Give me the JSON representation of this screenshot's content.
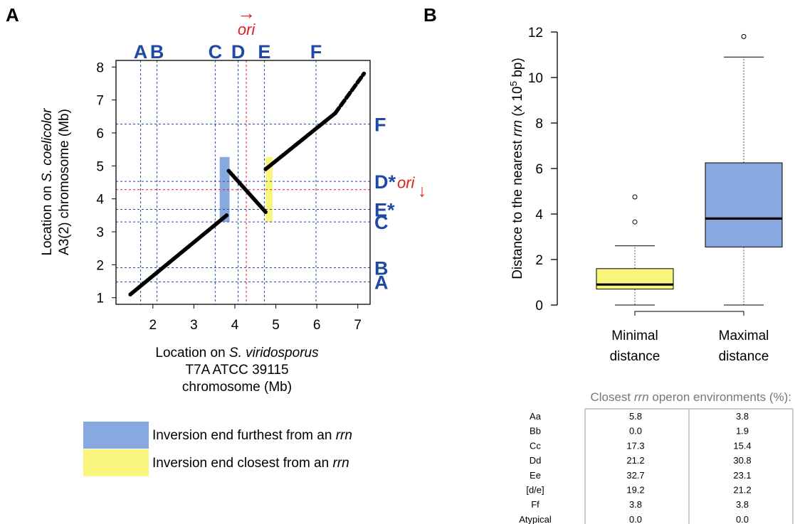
{
  "panels": {
    "a": "A",
    "b": "B"
  },
  "chart_data": [
    {
      "type": "scatter",
      "panel": "A",
      "xlabel_lines": [
        {
          "parts": [
            {
              "text": "Location on "
            },
            {
              "text": "S. viridosporus",
              "italic": true
            }
          ]
        },
        {
          "parts": [
            {
              "text": "T7A ATCC 39115"
            }
          ]
        },
        {
          "parts": [
            {
              "text": "chromosome (Mb)"
            }
          ]
        }
      ],
      "ylabel_lines": [
        {
          "parts": [
            {
              "text": "Location on "
            },
            {
              "text": "S. coelicolor",
              "italic": true
            }
          ]
        },
        {
          "parts": [
            {
              "text": "A3(2) chromosome (Mb)"
            }
          ]
        }
      ],
      "xlim": [
        1.1,
        7.3
      ],
      "ylim": [
        0.8,
        8.2
      ],
      "xticks": [
        2,
        3,
        4,
        5,
        6,
        7
      ],
      "yticks": [
        1,
        2,
        3,
        4,
        5,
        6,
        7,
        8
      ],
      "grid": false,
      "points": {
        "segments": [
          {
            "x": [
              1.45,
              3.8
            ],
            "y": [
              1.1,
              3.5
            ]
          },
          {
            "x": [
              3.85,
              4.75
            ],
            "y": [
              4.85,
              3.6
            ]
          },
          {
            "x": [
              4.75,
              6.45
            ],
            "y": [
              4.9,
              6.6
            ]
          },
          {
            "x": [
              6.45,
              7.15
            ],
            "y": [
              6.6,
              7.8
            ]
          }
        ],
        "color": "#000000"
      },
      "vertical_markers": [
        {
          "label": "A",
          "x": 1.7
        },
        {
          "label": "B",
          "x": 2.1
        },
        {
          "label": "C",
          "x": 3.52
        },
        {
          "label": "D",
          "x": 4.08
        },
        {
          "label": "E",
          "x": 4.72
        },
        {
          "label": "F",
          "x": 5.98
        }
      ],
      "horizontal_markers": [
        {
          "label": "F",
          "y": 6.27
        },
        {
          "label": "D*",
          "y": 4.53
        },
        {
          "label": "E*",
          "y": 3.68
        },
        {
          "label": "C",
          "y": 3.3
        },
        {
          "label": "B",
          "y": 1.91
        },
        {
          "label": "A",
          "y": 1.48
        }
      ],
      "ori": {
        "label": "ori",
        "x": 4.28,
        "y": 4.28,
        "top_arrow": "→",
        "right_arrow": "↓",
        "color": "#e0201a"
      },
      "inversion_ends": [
        {
          "kind": "furthest",
          "x": [
            3.63,
            3.87
          ],
          "y": [
            3.3,
            5.27
          ],
          "color": "#88a9e0"
        },
        {
          "kind": "closest",
          "x": [
            4.75,
            4.92
          ],
          "y": [
            3.3,
            5.27
          ],
          "color": "#f8f67c"
        }
      ],
      "legend": [
        {
          "kind": "furthest",
          "color": "#88a9e0",
          "text": "Inversion end furthest from an ",
          "italic": "rrn"
        },
        {
          "kind": "closest",
          "color": "#f8f67c",
          "text": "Inversion end closest from an ",
          "italic": "rrn"
        }
      ],
      "marker_color": "#1f49a3"
    },
    {
      "type": "box",
      "panel": "B",
      "ylabel_parts": [
        {
          "text": "Distance to the nearest "
        },
        {
          "text": "rrn",
          "italic": true
        },
        {
          "text": " (x 10"
        },
        {
          "text": "5",
          "sup": true
        },
        {
          "text": " bp)"
        }
      ],
      "ylim": [
        0,
        12
      ],
      "yticks": [
        0,
        2,
        4,
        6,
        8,
        10,
        12
      ],
      "grid": false,
      "categories": [
        {
          "lines": [
            "Minimal",
            "distance"
          ]
        },
        {
          "lines": [
            "Maximal",
            "distance"
          ]
        }
      ],
      "boxes": [
        {
          "name": "Minimal distance",
          "min": 0.0,
          "q1": 0.7,
          "median": 0.9,
          "q3": 1.6,
          "max": 2.6,
          "outliers": [
            3.65,
            4.75
          ],
          "color": "#f8f67c"
        },
        {
          "name": "Maximal distance",
          "min": 0.0,
          "q1": 2.55,
          "median": 3.8,
          "q3": 6.25,
          "max": 10.9,
          "outliers": [
            11.8
          ],
          "color": "#88a9e0"
        }
      ],
      "table": {
        "title_parts": [
          {
            "text": "Closest "
          },
          {
            "text": "rrn",
            "italic": true
          },
          {
            "text": " operon environments (%):"
          }
        ],
        "rows": [
          {
            "label": "Aa",
            "min": "5.8",
            "max": "3.8"
          },
          {
            "label": "Bb",
            "min": "0.0",
            "max": "1.9"
          },
          {
            "label": "Cc",
            "min": "17.3",
            "max": "15.4"
          },
          {
            "label": "Dd",
            "min": "21.2",
            "max": "30.8"
          },
          {
            "label": "Ee",
            "min": "32.7",
            "max": "23.1"
          },
          {
            "label": "[d/e]",
            "min": "19.2",
            "max": "21.2"
          },
          {
            "label": "Ff",
            "min": "3.8",
            "max": "3.8"
          },
          {
            "label": "Atypical",
            "min": "0.0",
            "max": "0.0"
          }
        ]
      }
    }
  ]
}
